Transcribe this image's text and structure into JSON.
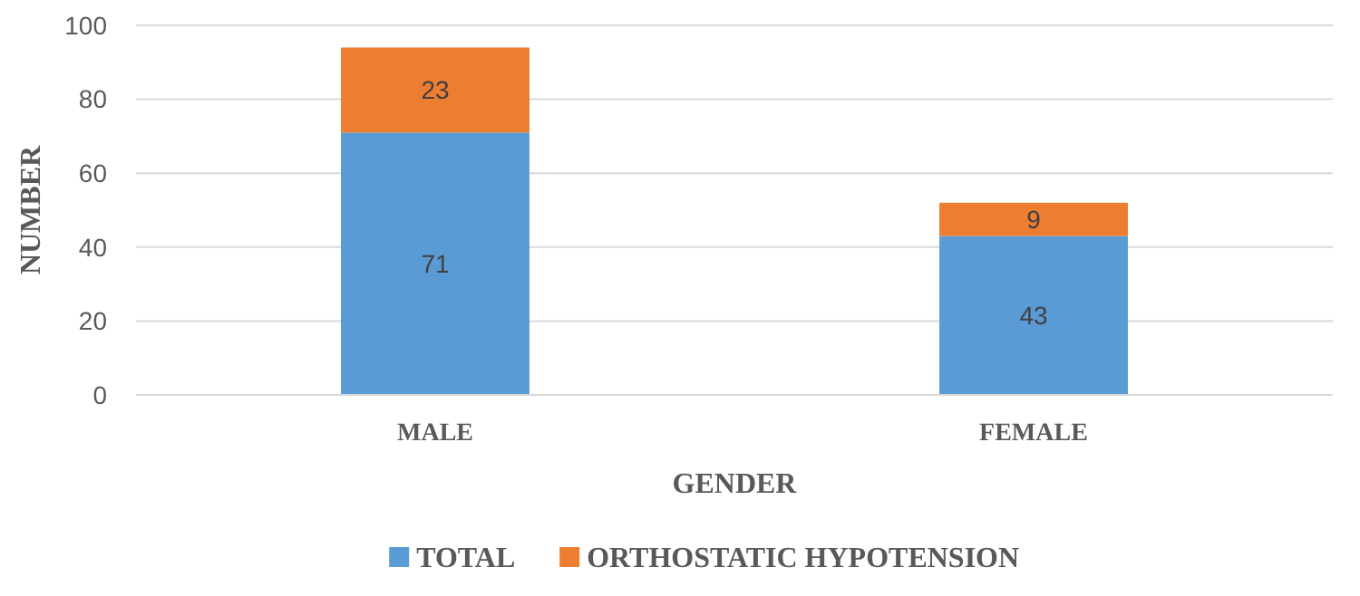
{
  "chart_data": {
    "type": "bar",
    "stacked": true,
    "xlabel": "GENDER",
    "ylabel": "NUMBER",
    "categories": [
      "MALE",
      "FEMALE"
    ],
    "series": [
      {
        "name": "TOTAL",
        "color": "#5b9bd5",
        "values": [
          71,
          43
        ]
      },
      {
        "name": "ORTHOSTATIC HYPOTENSION",
        "color": "#ed7d31",
        "values": [
          23,
          9
        ]
      }
    ],
    "ylim": [
      0,
      100
    ],
    "yticks": [
      0,
      20,
      40,
      60,
      80,
      100
    ],
    "grid": "y",
    "legend": "bottom",
    "data_labels": true
  }
}
